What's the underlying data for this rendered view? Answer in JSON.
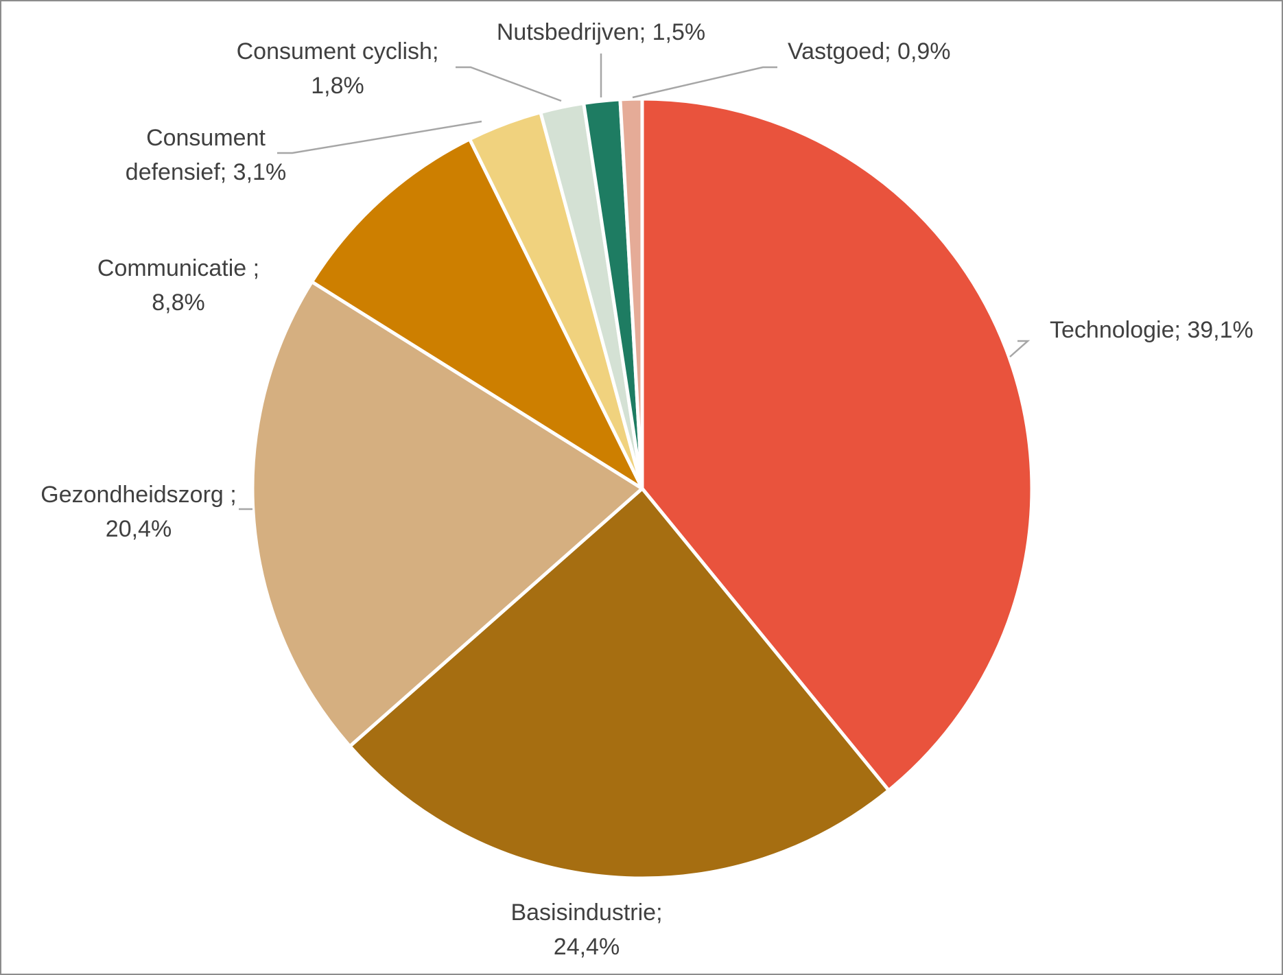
{
  "chart_data": {
    "type": "pie",
    "title": "",
    "slices": [
      {
        "name": "Technologie",
        "value": 39.1,
        "lines": [
          "Technologie; 39,1%"
        ],
        "color": "#E9533D"
      },
      {
        "name": "Basisindustrie",
        "value": 24.4,
        "lines": [
          "Basisindustrie;",
          "24,4%"
        ],
        "color": "#A66E11"
      },
      {
        "name": "Gezondheidszorg",
        "value": 20.4,
        "lines": [
          "Gezondheidszorg ;",
          "20,4%"
        ],
        "color": "#D5AF80"
      },
      {
        "name": "Communicatie",
        "value": 8.8,
        "lines": [
          "Communicatie ;",
          "8,8%"
        ],
        "color": "#CD7F00"
      },
      {
        "name": "Consument defensief",
        "value": 3.1,
        "lines": [
          "Consument",
          "defensief; 3,1%"
        ],
        "color": "#F0D27E"
      },
      {
        "name": "Consument cyclish",
        "value": 1.8,
        "lines": [
          "Consument cyclish;",
          "1,8%"
        ],
        "color": "#D4E1D4"
      },
      {
        "name": "Nutsbedrijven",
        "value": 1.5,
        "lines": [
          "Nutsbedrijven; 1,5%"
        ],
        "color": "#1E7C62"
      },
      {
        "name": "Vastgoed",
        "value": 0.9,
        "lines": [
          "Vastgoed; 0,9%"
        ],
        "color": "#E5AB97"
      }
    ],
    "legend": "none",
    "labels": "outside-with-leader-lines"
  }
}
